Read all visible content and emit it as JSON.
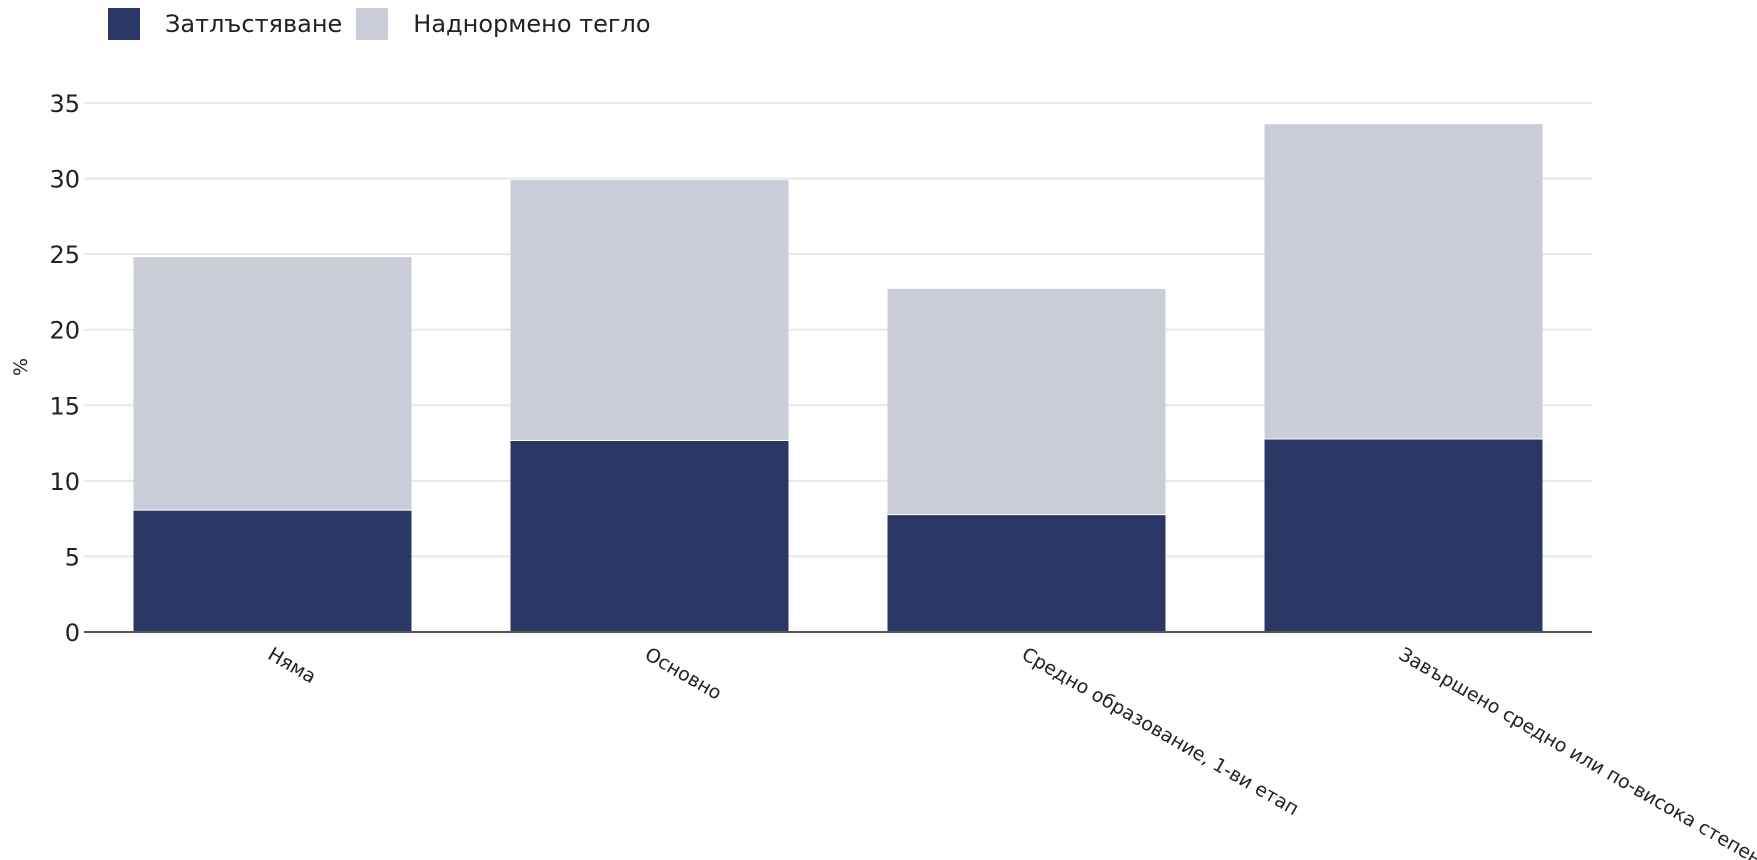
{
  "chart_data": {
    "type": "bar",
    "stacked": true,
    "categories": [
      "Няма",
      "Основно",
      "Средно образование, 1-ви етап",
      "Завършено средно или по-висока степен"
    ],
    "series": [
      {
        "name": "Затлъстяване",
        "values": [
          8.1,
          12.7,
          7.8,
          12.8
        ],
        "color": "#2b3765"
      },
      {
        "name": "Наднормено тегло",
        "values": [
          16.7,
          17.2,
          14.9,
          20.8
        ],
        "color": "#caccd8"
      }
    ],
    "ylabel": "%",
    "ylim": [
      0,
      35
    ],
    "yticks": [
      0,
      5,
      10,
      15,
      20,
      25,
      30,
      35
    ],
    "grid": true,
    "legend_position": "top-left"
  }
}
